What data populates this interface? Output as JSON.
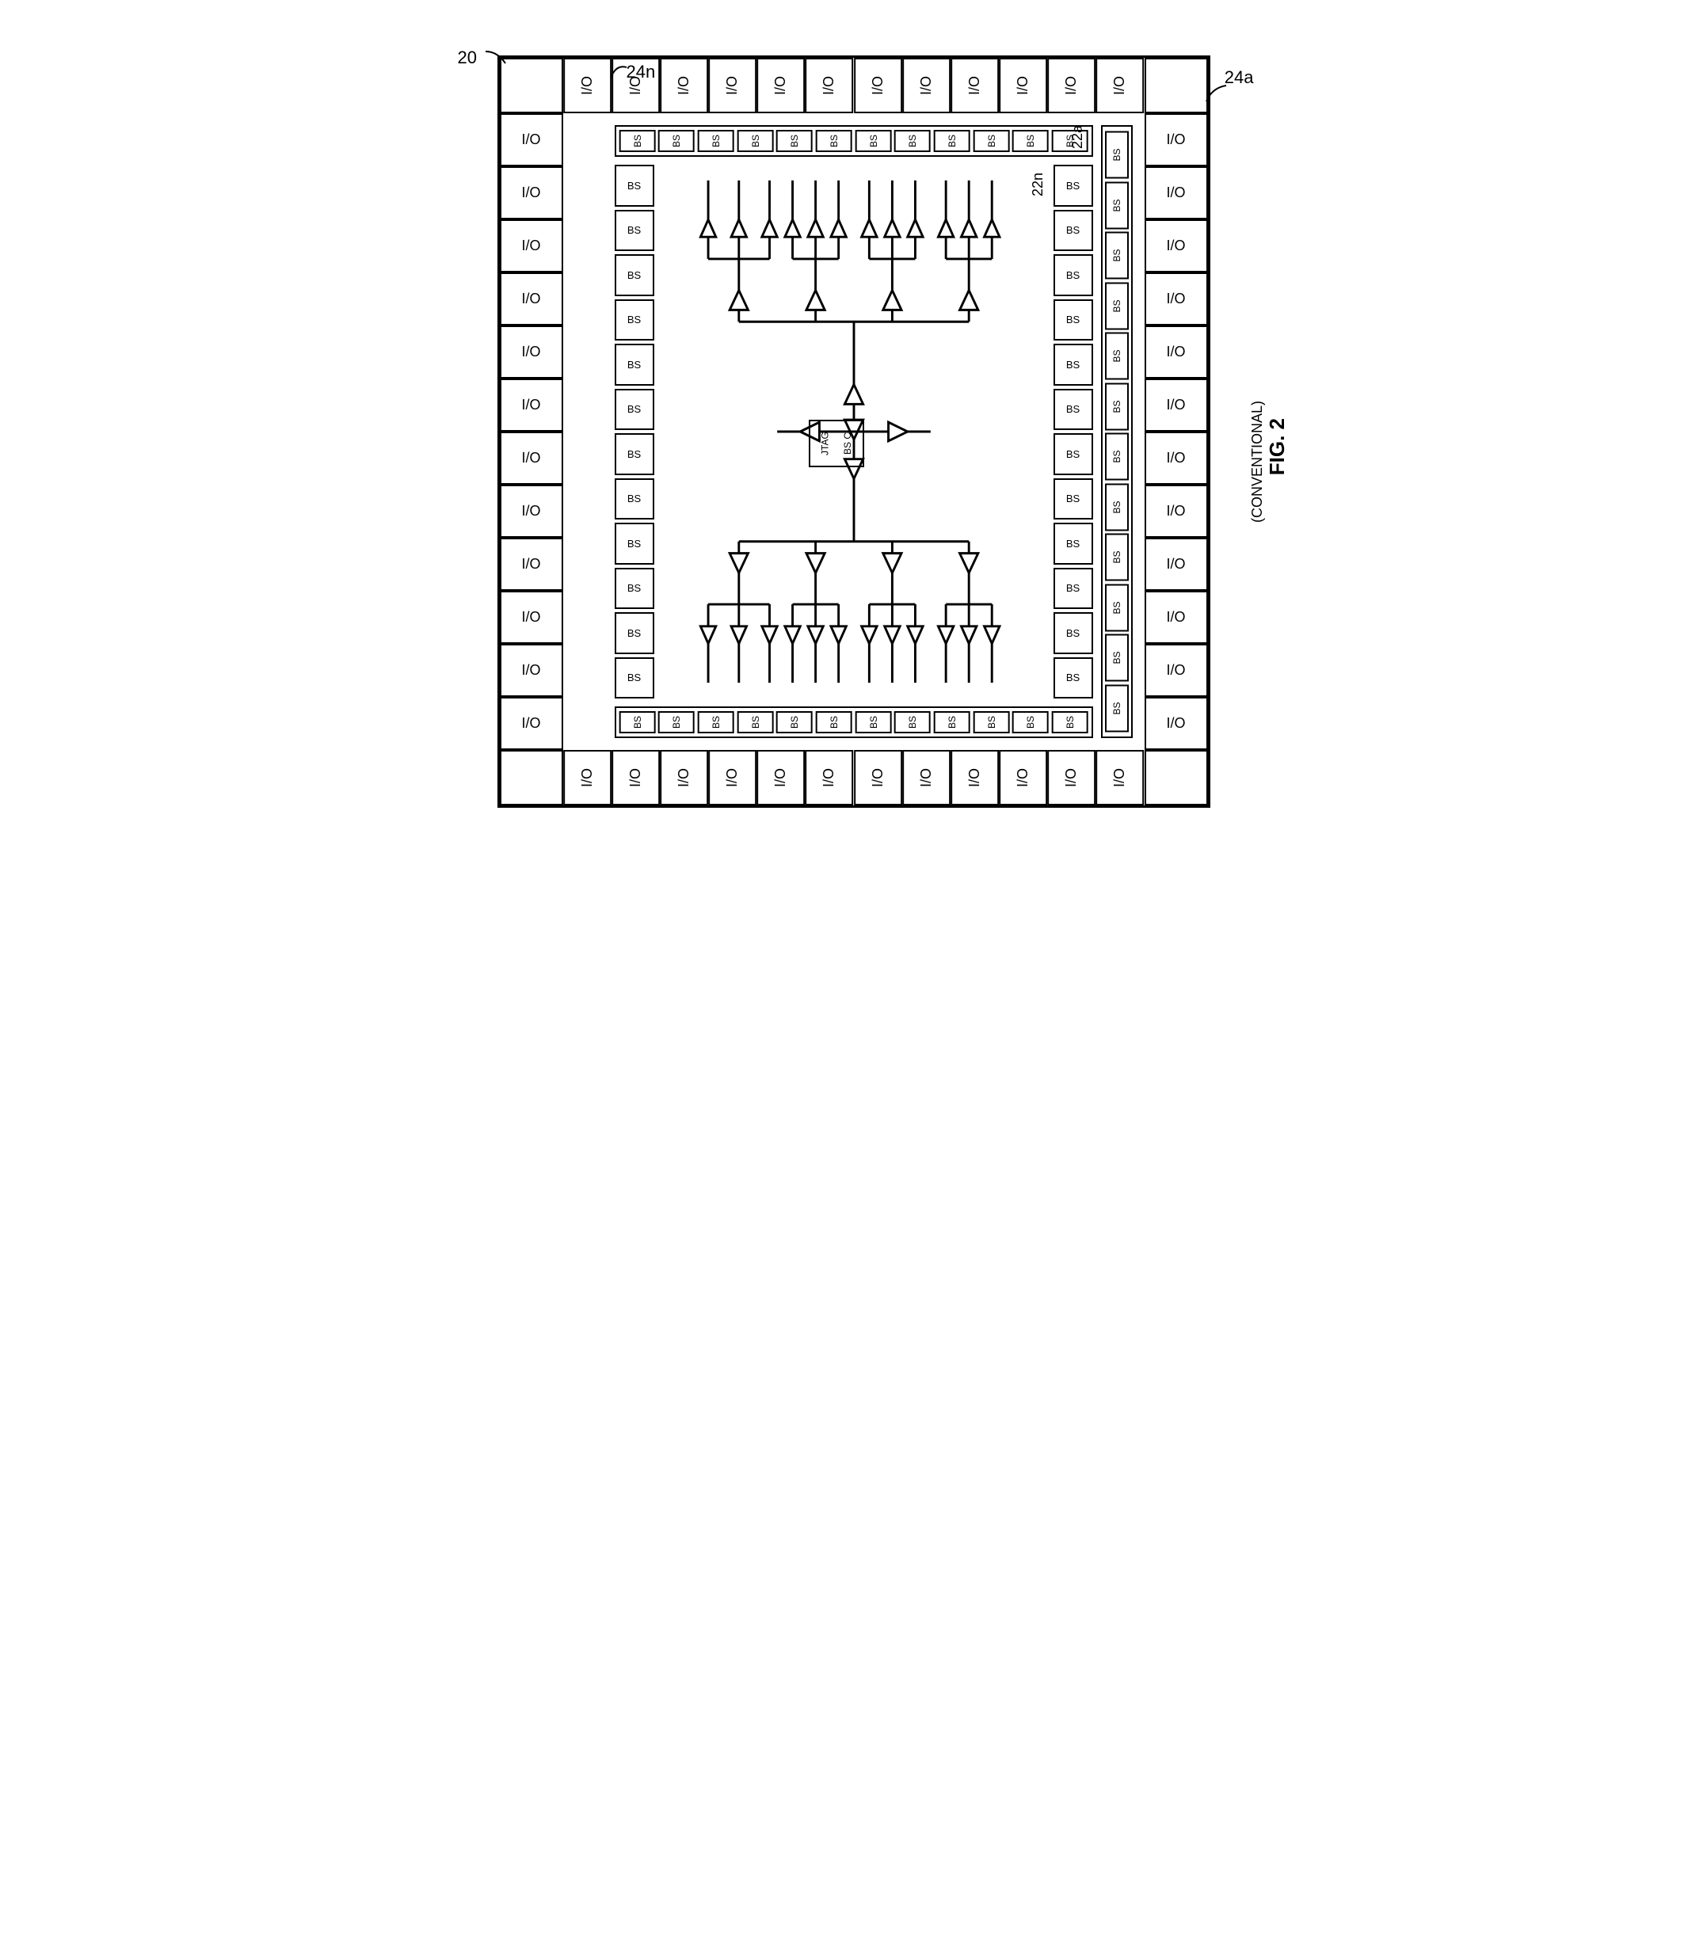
{
  "figure": {
    "number": "FIG. 2",
    "subtitle": "(CONVENTIONAL)"
  },
  "reference_numerals": {
    "chip": "20",
    "io_top_callout": "24n",
    "io_right_callout": "24a",
    "bs_right_callout": "22a",
    "bs_inner_callout": "22n"
  },
  "labels": {
    "io": "I/O",
    "bs": "BS",
    "jtag_line1": "JTAG",
    "jtag_line2": "BS C"
  },
  "counts": {
    "io_per_side": 12,
    "bs_vertical_per_side": 12,
    "bs_horizontal_per_side": 12,
    "bs_outer_right": 12
  },
  "styling": {
    "stroke_color": "#000000",
    "stroke_width": 2,
    "background": "#ffffff",
    "font_family": "Arial, sans-serif",
    "io_fontsize": 18,
    "bs_fontsize": 13,
    "label_fontsize": 22,
    "fig_fontsize": 26
  },
  "diagram": {
    "type": "chip-block-diagram",
    "description": "Square IC die with I/O pad ring on all four edges (12 per side), inner boundary-scan (BS) cell ring on all four edges (12 per side), clock/buffer distribution tree (triangular buffers) fanning out from central JTAG BS Controller block to BS cells on each side",
    "buffer_tree": {
      "levels": 3,
      "root": "center JTAG block",
      "fanout_per_level": [
        1,
        4,
        4
      ],
      "buffer_shape": "triangle (non-inverting buffer)",
      "directions": [
        "up",
        "down",
        "left",
        "right"
      ]
    }
  }
}
